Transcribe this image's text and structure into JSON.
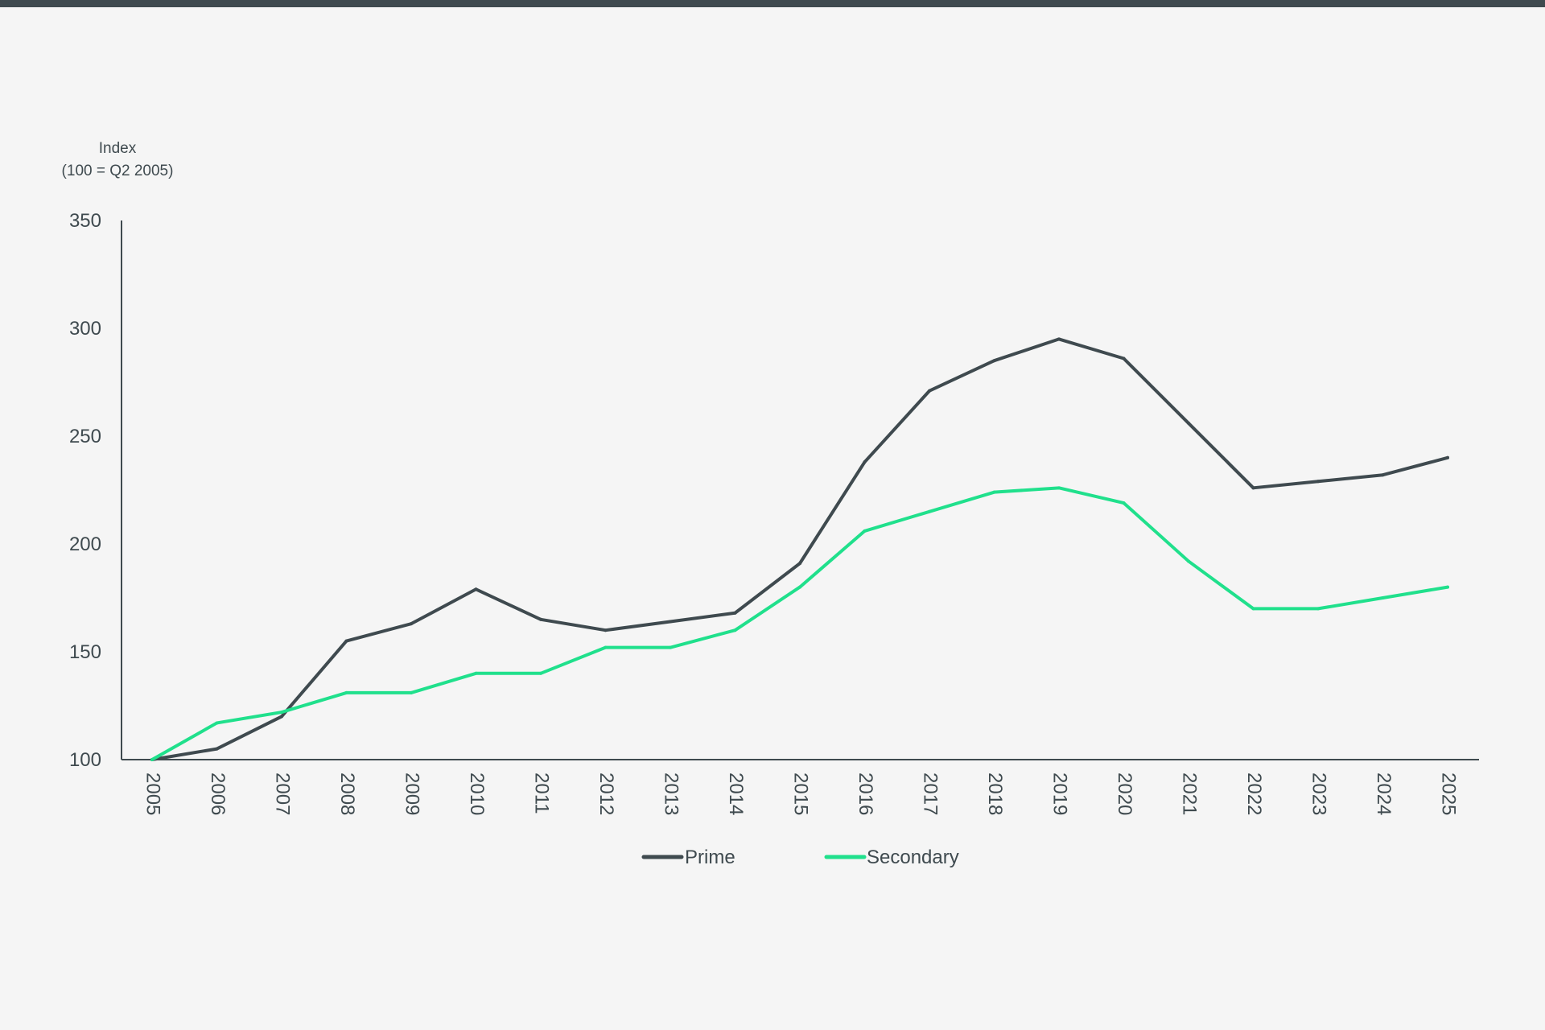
{
  "chart_data": {
    "type": "line",
    "ylabel_lines": [
      "Index",
      "(100 = Q2 2005)"
    ],
    "ylim": [
      100,
      350
    ],
    "yticks": [
      100,
      150,
      200,
      250,
      300,
      350
    ],
    "x": [
      "2005",
      "2006",
      "2007",
      "2008",
      "2009",
      "2010",
      "2011",
      "2012",
      "2013",
      "2014",
      "2015",
      "2016",
      "2017",
      "2018",
      "2019",
      "2020",
      "2021",
      "2022",
      "2023",
      "2024",
      "2025"
    ],
    "series": [
      {
        "name": "Prime",
        "color": "#3f4a4f",
        "values": [
          100,
          105,
          120,
          155,
          163,
          179,
          165,
          160,
          164,
          168,
          191,
          238,
          271,
          285,
          295,
          286,
          256,
          226,
          229,
          232,
          240
        ]
      },
      {
        "name": "Secondary",
        "color": "#20e08c",
        "values": [
          100,
          117,
          122,
          131,
          131,
          140,
          140,
          152,
          152,
          160,
          180,
          206,
          215,
          224,
          226,
          219,
          192,
          170,
          170,
          175,
          180
        ]
      }
    ],
    "legend_position": "bottom-center",
    "grid": false
  }
}
